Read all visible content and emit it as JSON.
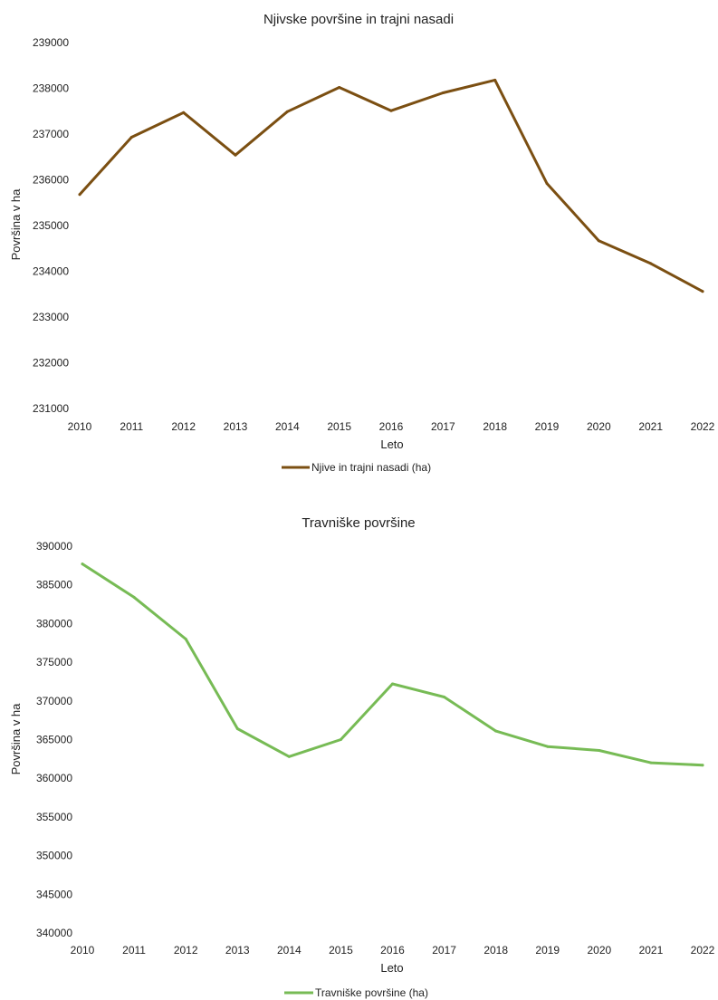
{
  "chart_data": [
    {
      "type": "line",
      "title": "Njivske površine in trajni nasadi",
      "xlabel": "Leto",
      "ylabel": "Površina v ha",
      "categories": [
        "2010",
        "2011",
        "2012",
        "2013",
        "2014",
        "2015",
        "2016",
        "2017",
        "2018",
        "2019",
        "2020",
        "2021",
        "2022"
      ],
      "ylim": [
        231000,
        239000
      ],
      "yticks": [
        "231000",
        "232000",
        "233000",
        "234000",
        "235000",
        "236000",
        "237000",
        "238000",
        "239000"
      ],
      "grid": false,
      "legend_position": "bottom",
      "series": [
        {
          "name": "Njive in trajni nasadi (ha)",
          "color": "#7b4f12",
          "values": [
            235680,
            236930,
            237470,
            236540,
            237490,
            238020,
            237510,
            237900,
            238180,
            235920,
            234670,
            234170,
            233560
          ]
        }
      ]
    },
    {
      "type": "line",
      "title": "Travniške površine",
      "xlabel": "Leto",
      "ylabel": "Površina v ha",
      "categories": [
        "2010",
        "2011",
        "2012",
        "2013",
        "2014",
        "2015",
        "2016",
        "2017",
        "2018",
        "2019",
        "2020",
        "2021",
        "2022"
      ],
      "ylim": [
        340000,
        390000
      ],
      "yticks": [
        "340000",
        "345000",
        "350000",
        "355000",
        "360000",
        "365000",
        "370000",
        "375000",
        "380000",
        "385000",
        "390000"
      ],
      "grid": false,
      "legend_position": "bottom",
      "series": [
        {
          "name": "Travniške površine (ha)",
          "color": "#77bb55",
          "values": [
            387700,
            383400,
            378000,
            366400,
            362800,
            365000,
            372200,
            370500,
            366100,
            364100,
            363600,
            362000,
            361700
          ]
        }
      ]
    }
  ]
}
